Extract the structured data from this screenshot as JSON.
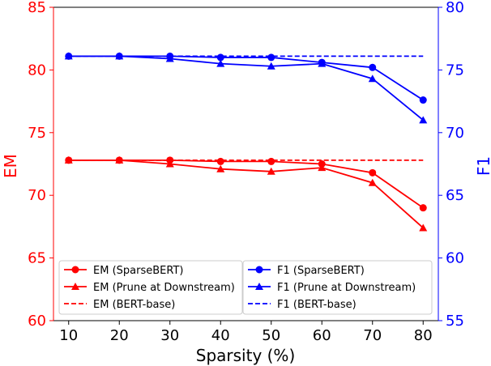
{
  "chart_data": {
    "type": "line",
    "xlabel": "Sparsity (%)",
    "ylabel_left": "EM",
    "ylabel_right": "F1",
    "x": [
      10,
      20,
      30,
      40,
      50,
      60,
      70,
      80
    ],
    "x_ticks": [
      "10",
      "20",
      "30",
      "40",
      "50",
      "60",
      "70",
      "80"
    ],
    "xlim": [
      7,
      83
    ],
    "ylim_left": [
      60,
      85
    ],
    "ylim_right": [
      55,
      80
    ],
    "y_ticks_left": [
      "60",
      "65",
      "70",
      "75",
      "80",
      "85"
    ],
    "y_ticks_right": [
      "55",
      "60",
      "65",
      "70",
      "75",
      "80"
    ],
    "grid": false,
    "colors": {
      "em": "#ff0000",
      "f1": "#0000ff",
      "text": "#000000"
    },
    "series": [
      {
        "name": "EM (SparseBERT)",
        "axis": "left",
        "color": "#ff0000",
        "marker": "circle",
        "dash": false,
        "values": [
          72.8,
          72.8,
          72.8,
          72.7,
          72.7,
          72.5,
          71.8,
          69.0
        ]
      },
      {
        "name": "EM (Prune at Downstream)",
        "axis": "left",
        "color": "#ff0000",
        "marker": "triangle",
        "dash": false,
        "values": [
          72.8,
          72.8,
          72.5,
          72.1,
          71.9,
          72.2,
          71.0,
          67.4
        ]
      },
      {
        "name": "EM (BERT-base)",
        "axis": "left",
        "color": "#ff0000",
        "marker": "none",
        "dash": true,
        "values": [
          72.8,
          72.8,
          72.8,
          72.8,
          72.8,
          72.8,
          72.8,
          72.8
        ]
      },
      {
        "name": "F1 (SparseBERT)",
        "axis": "right",
        "color": "#0000ff",
        "marker": "circle",
        "dash": false,
        "values": [
          76.1,
          76.1,
          76.1,
          76.0,
          76.0,
          75.6,
          75.2,
          72.6
        ]
      },
      {
        "name": "F1 (Prune at Downstream)",
        "axis": "right",
        "color": "#0000ff",
        "marker": "triangle",
        "dash": false,
        "values": [
          76.1,
          76.1,
          75.9,
          75.5,
          75.3,
          75.5,
          74.3,
          71.0
        ]
      },
      {
        "name": "F1 (BERT-base)",
        "axis": "right",
        "color": "#0000ff",
        "marker": "none",
        "dash": true,
        "values": [
          76.1,
          76.1,
          76.1,
          76.1,
          76.1,
          76.1,
          76.1,
          76.1
        ]
      }
    ],
    "legends": [
      {
        "position": "lower-left",
        "entries": [
          0,
          1,
          2
        ]
      },
      {
        "position": "lower-right",
        "entries": [
          3,
          4,
          5
        ]
      }
    ]
  }
}
